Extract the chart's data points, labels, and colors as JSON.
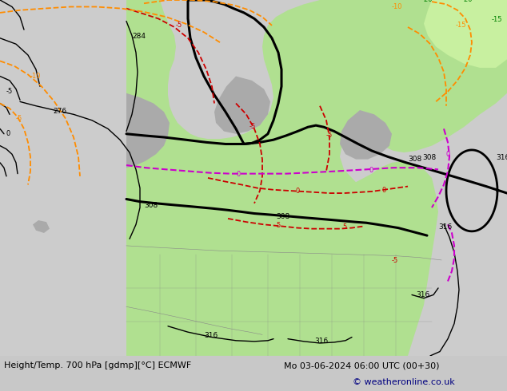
{
  "title_left": "Height/Temp. 700 hPa [gdmp][°C] ECMWF",
  "title_right": "Mo 03-06-2024 06:00 UTC (00+30)",
  "copyright": "© weatheronline.co.uk",
  "bg_color": "#c8c8c8",
  "map_bg": "#d8d8d8",
  "land_green": "#b0e090",
  "land_gray": "#aaaaaa",
  "ocean_color": "#d0d0d0",
  "title_fontsize": 8.5,
  "copyright_color": "#000080",
  "bottom_text_color": "#000000",
  "green_label_color": "#008000",
  "red_color": "#cc0000",
  "magenta_color": "#cc00cc",
  "orange_color": "#ff8c00",
  "black_bold_lw": 2.2,
  "black_thin_lw": 1.0,
  "temp_lw": 1.3
}
